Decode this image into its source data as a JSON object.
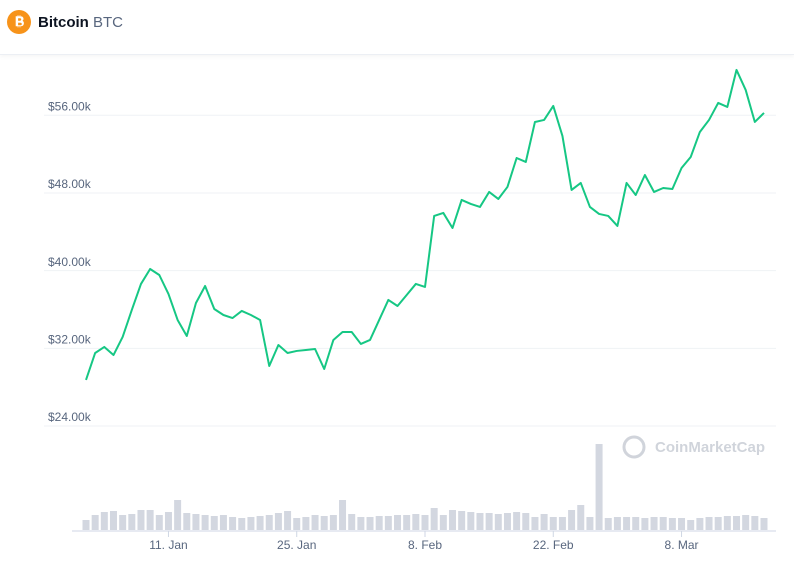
{
  "header": {
    "name": "Bitcoin",
    "symbol": "BTC"
  },
  "chart_data": {
    "type": "line",
    "watermark": "CoinMarketCap",
    "grid": true,
    "x": [
      0,
      1,
      2,
      3,
      4,
      5,
      6,
      7,
      8,
      9,
      10,
      11,
      12,
      13,
      14,
      15,
      16,
      17,
      18,
      19,
      20,
      21,
      22,
      23,
      24,
      25,
      26,
      27,
      28,
      29,
      30,
      31,
      32,
      33,
      34,
      35,
      36,
      37,
      38,
      39,
      40,
      41,
      42,
      43,
      44,
      45,
      46,
      47,
      48,
      49,
      50,
      51,
      52,
      53,
      54,
      55,
      56,
      57,
      58,
      59,
      60,
      61,
      62,
      63,
      64,
      65,
      66,
      67,
      68,
      69,
      70,
      71,
      72,
      73,
      74
    ],
    "xlim": [
      0,
      74
    ],
    "xticks": [
      {
        "value": 9,
        "label": "11. Jan"
      },
      {
        "value": 23,
        "label": "25. Jan"
      },
      {
        "value": 37,
        "label": "8. Feb"
      },
      {
        "value": 51,
        "label": "22. Feb"
      },
      {
        "value": 65,
        "label": "8. Mar"
      }
    ],
    "ylim": [
      24000,
      62000
    ],
    "yticks": [
      {
        "value": 24000,
        "label": "$24.00k"
      },
      {
        "value": 32000,
        "label": "$32.00k"
      },
      {
        "value": 40000,
        "label": "$40.00k"
      },
      {
        "value": 48000,
        "label": "$48.00k"
      },
      {
        "value": 56000,
        "label": "$56.00k"
      }
    ],
    "y2lim": [
      0,
      100
    ],
    "series": [
      {
        "color": "#16c784",
        "values": [
          28740,
          31520,
          32140,
          31310,
          33170,
          35950,
          38630,
          40170,
          39550,
          37600,
          34920,
          33270,
          36670,
          38420,
          36050,
          35430,
          35120,
          35850,
          35430,
          34920,
          30180,
          32340,
          31520,
          31730,
          31830,
          31930,
          29870,
          32860,
          33680,
          33680,
          32450,
          32860,
          34920,
          36980,
          36360,
          37490,
          38630,
          38320,
          45630,
          45940,
          44390,
          47280,
          46870,
          46560,
          48100,
          47380,
          48620,
          51600,
          51190,
          55310,
          55520,
          56960,
          53870,
          48310,
          49030,
          46560,
          45840,
          45630,
          44600,
          49030,
          47790,
          49850,
          48100,
          48510,
          48410,
          50570,
          51700,
          54280,
          55520,
          57270,
          56860,
          60670,
          58610,
          55310,
          56240
        ]
      },
      {
        "color": "#d3d7e0",
        "axis": "y2",
        "values": [
          10,
          15,
          18,
          19,
          15,
          16,
          20,
          20,
          15,
          18,
          30,
          17,
          16,
          15,
          14,
          15,
          13,
          12,
          13,
          14,
          15,
          17,
          19,
          12,
          13,
          15,
          14,
          15,
          30,
          16,
          13,
          13,
          14,
          14,
          15,
          15,
          16,
          15,
          22,
          15,
          20,
          19,
          18,
          17,
          17,
          16,
          17,
          18,
          17,
          13,
          16,
          13,
          13,
          20,
          25,
          13,
          86,
          12,
          13,
          13,
          13,
          12,
          13,
          13,
          12,
          12,
          10,
          12,
          13,
          13,
          14,
          14,
          15,
          14,
          12
        ]
      }
    ]
  }
}
